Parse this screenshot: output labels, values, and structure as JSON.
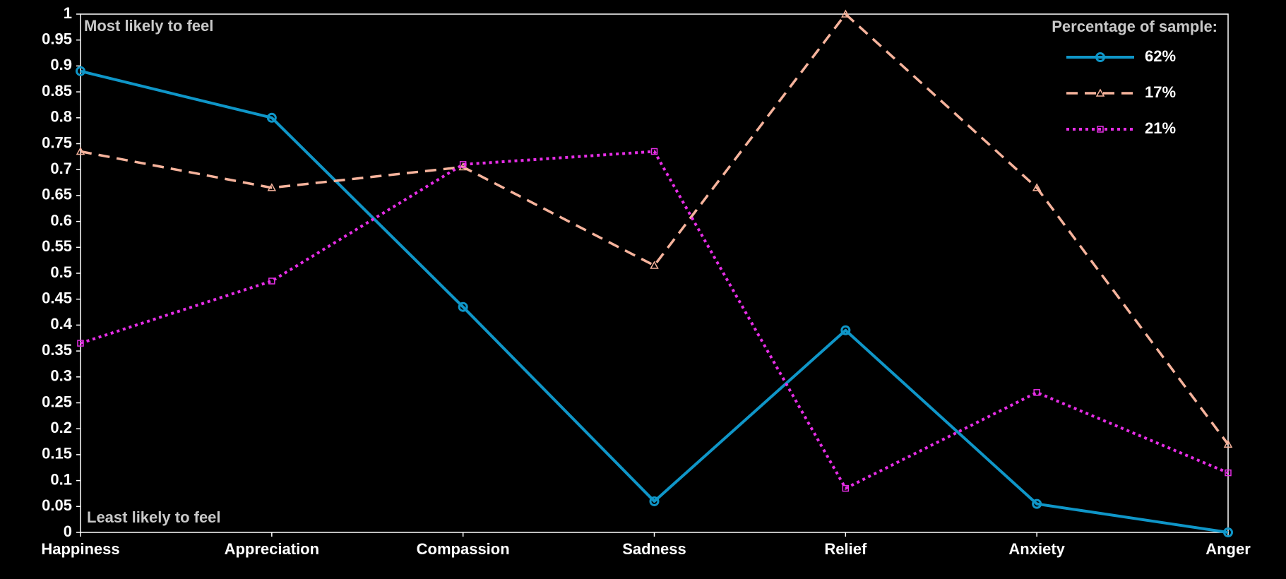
{
  "chart_data": {
    "type": "line",
    "categories": [
      "Happiness",
      "Appreciation",
      "Compassion",
      "Sadness",
      "Relief",
      "Anxiety",
      "Anger"
    ],
    "series": [
      {
        "name": "62%",
        "color": "#0f96c8",
        "line_style": "solid",
        "marker": "circle",
        "values": [
          0.89,
          0.8,
          0.435,
          0.06,
          0.39,
          0.055,
          0.0
        ]
      },
      {
        "name": "17%",
        "color": "#f6b39c",
        "line_style": "dashed",
        "marker": "triangle",
        "values": [
          0.735,
          0.665,
          0.705,
          0.515,
          1.0,
          0.665,
          0.17
        ]
      },
      {
        "name": "21%",
        "color": "#e62ee6",
        "line_style": "dotted",
        "marker": "square",
        "values": [
          0.365,
          0.485,
          0.71,
          0.735,
          0.085,
          0.27,
          0.115
        ]
      }
    ],
    "ylim": [
      0,
      1
    ],
    "yticks": [
      0,
      0.05,
      0.1,
      0.15,
      0.2,
      0.25,
      0.3,
      0.35,
      0.4,
      0.45,
      0.5,
      0.55,
      0.6,
      0.65,
      0.7,
      0.75,
      0.8,
      0.85,
      0.9,
      0.95,
      1
    ],
    "grid": false,
    "annotations": [
      "Most likely to feel",
      "Least likely to feel"
    ],
    "legend_title": "Percentage of sample:",
    "legend": "upper right"
  }
}
